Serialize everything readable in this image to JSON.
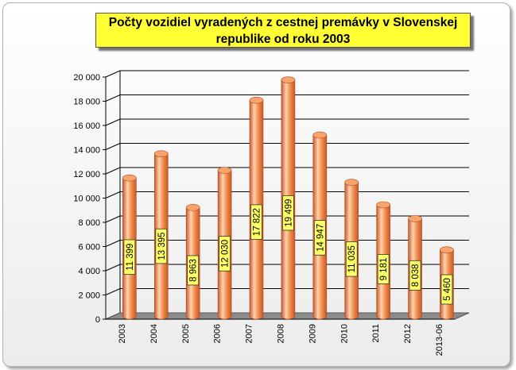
{
  "chart_data": {
    "type": "bar",
    "title_lines": [
      "Počty vozidiel vyradených z cestnej premávky v Slovenskej",
      "republike od roku 2003"
    ],
    "categories": [
      "2003",
      "2004",
      "2005",
      "2006",
      "2007",
      "2008",
      "2009",
      "2010",
      "2011",
      "2012",
      "2013-06"
    ],
    "values": [
      11399,
      13395,
      8963,
      12030,
      17822,
      19499,
      14947,
      11035,
      9181,
      8038,
      5460
    ],
    "data_labels": [
      "11 399",
      "13 395",
      "8 963",
      "12 030",
      "17 822",
      "19 499",
      "14 947",
      "11 035",
      "9 181",
      "8 038",
      "5 460"
    ],
    "y_ticks": [
      0,
      2000,
      4000,
      6000,
      8000,
      10000,
      12000,
      14000,
      16000,
      18000,
      20000
    ],
    "y_tick_labels": [
      "0",
      "2 000",
      "4 000",
      "6 000",
      "8 000",
      "10 000",
      "12 000",
      "14 000",
      "16 000",
      "18 000",
      "20 000"
    ],
    "ylim": [
      0,
      20000
    ],
    "xlabel": "",
    "ylabel": "",
    "grid": true,
    "colors": {
      "bar": "#f08c4a",
      "bar_dark": "#c8582a",
      "bar_light": "#ffd3b0",
      "label_bg": "#ffff66",
      "floor": "#8c8c8c",
      "title_bg": "#ffff33"
    }
  }
}
